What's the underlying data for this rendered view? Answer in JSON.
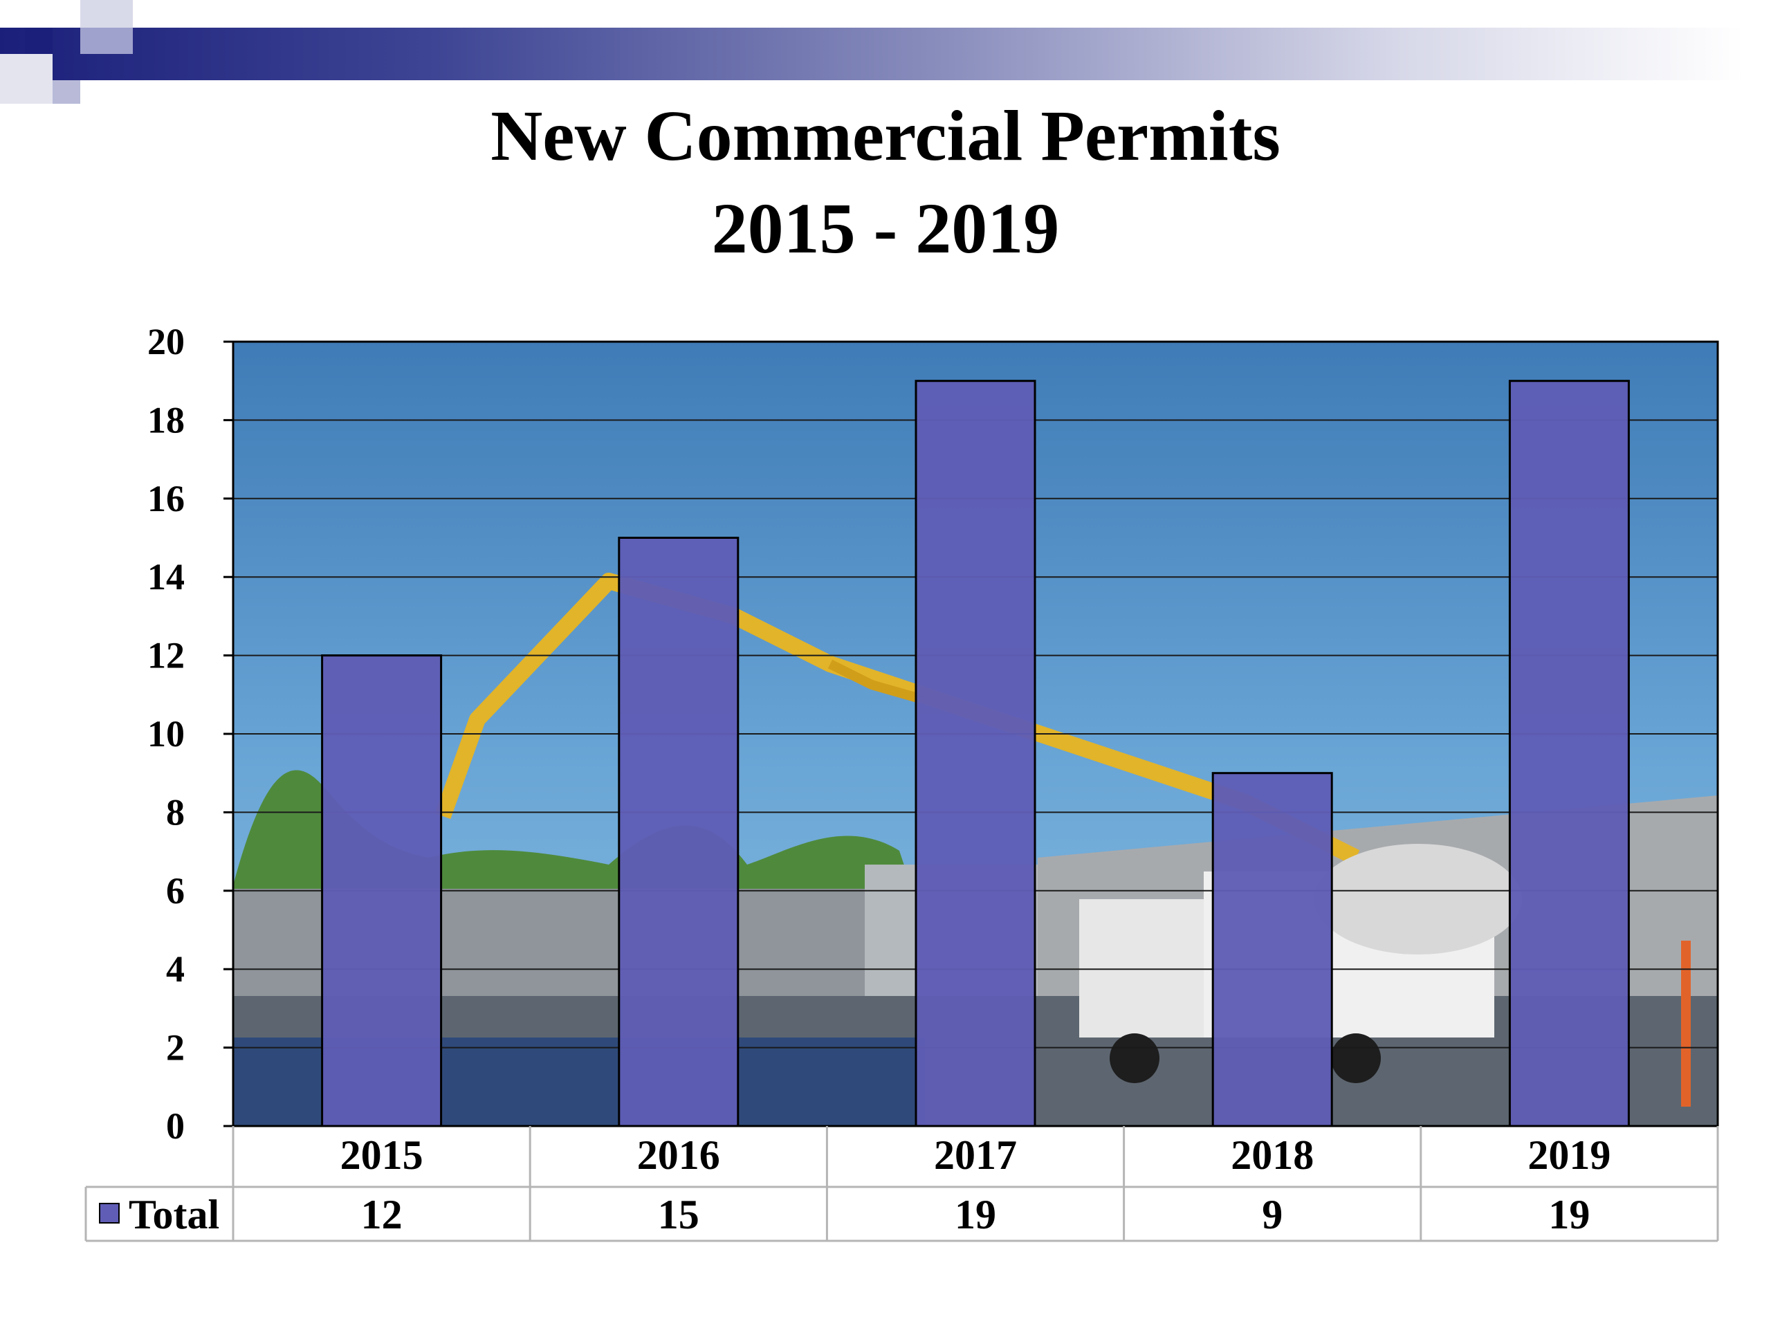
{
  "colors": {
    "bar": "#5f5db5",
    "sky_top": "#3f7bb6",
    "sky_bottom": "#7fb3dd",
    "header_band": "#1b1f7a"
  },
  "chart_data": {
    "type": "bar",
    "title": [
      "New Commercial Permits",
      "2015 - 2019"
    ],
    "categories": [
      "2015",
      "2016",
      "2017",
      "2018",
      "2019"
    ],
    "series": [
      {
        "name": "Total",
        "values": [
          12,
          15,
          19,
          9,
          19
        ]
      }
    ],
    "ylim": [
      0,
      20
    ],
    "yticks": [
      0,
      2,
      4,
      6,
      8,
      10,
      12,
      14,
      16,
      18,
      20
    ],
    "grid": true,
    "data_table": true,
    "background": "construction site photo"
  }
}
